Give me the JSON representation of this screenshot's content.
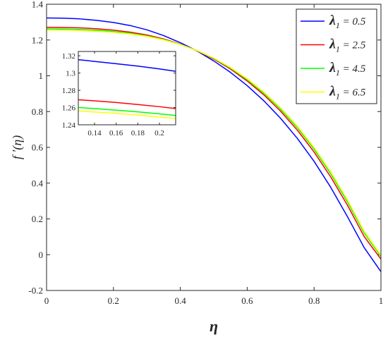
{
  "chart_data": {
    "type": "line",
    "xlabel": "η",
    "ylabel": "f ′(η)",
    "xlim": [
      0,
      1
    ],
    "ylim": [
      -0.2,
      1.4
    ],
    "x_ticks": [
      "0",
      "0.2",
      "0.4",
      "0.6",
      "0.8",
      "1"
    ],
    "y_ticks": [
      "-0.2",
      "0",
      "0.2",
      "0.4",
      "0.6",
      "0.8",
      "1",
      "1.2",
      "1.4"
    ],
    "grid": false,
    "legend_position": "top-right",
    "x": [
      0,
      0.05,
      0.1,
      0.15,
      0.2,
      0.25,
      0.3,
      0.35,
      0.4,
      0.45,
      0.5,
      0.55,
      0.6,
      0.65,
      0.7,
      0.75,
      0.8,
      0.85,
      0.9,
      0.95,
      1.0
    ],
    "series": [
      {
        "name": "λ1 = 0.5",
        "color": "#0000ff",
        "values": [
          1.323,
          1.322,
          1.318,
          1.31,
          1.298,
          1.281,
          1.257,
          1.225,
          1.185,
          1.139,
          1.083,
          1.019,
          0.945,
          0.86,
          0.762,
          0.65,
          0.522,
          0.376,
          0.212,
          0.039,
          -0.095
        ]
      },
      {
        "name": "λ1 = 2.5",
        "color": "#ff0000",
        "values": [
          1.271,
          1.27,
          1.268,
          1.263,
          1.255,
          1.244,
          1.228,
          1.206,
          1.177,
          1.14,
          1.094,
          1.038,
          0.971,
          0.893,
          0.802,
          0.696,
          0.574,
          0.434,
          0.276,
          0.101,
          -0.025
        ]
      },
      {
        "name": "λ1 = 4.5",
        "color": "#00ff00",
        "values": [
          1.262,
          1.261,
          1.259,
          1.255,
          1.248,
          1.238,
          1.223,
          1.203,
          1.176,
          1.141,
          1.097,
          1.043,
          0.978,
          0.902,
          0.813,
          0.71,
          0.59,
          0.452,
          0.295,
          0.121,
          -0.01
        ]
      },
      {
        "name": "λ1 = 6.5",
        "color": "#ffff00",
        "values": [
          1.256,
          1.255,
          1.253,
          1.249,
          1.243,
          1.234,
          1.22,
          1.201,
          1.175,
          1.141,
          1.099,
          1.046,
          0.983,
          0.908,
          0.82,
          0.718,
          0.599,
          0.462,
          0.305,
          0.13,
          -0.003
        ]
      }
    ],
    "legend": [
      {
        "symbol": "λ",
        "sub": "1",
        "rest": " = 0.5"
      },
      {
        "symbol": "λ",
        "sub": "1",
        "rest": " = 2.5"
      },
      {
        "symbol": "λ",
        "sub": "1",
        "rest": " = 4.5"
      },
      {
        "symbol": "λ",
        "sub": "1",
        "rest": " = 6.5"
      }
    ],
    "inset": {
      "type": "line",
      "xlim": [
        0.125,
        0.215
      ],
      "ylim": [
        1.24,
        1.325
      ],
      "x_ticks": [
        "0.14",
        "0.16",
        "0.18",
        "0.2"
      ],
      "y_ticks": [
        "1.24",
        "1.26",
        "1.28",
        "1.3",
        "1.32"
      ],
      "x": [
        0.125,
        0.14,
        0.16,
        0.18,
        0.2,
        0.215
      ],
      "series": [
        {
          "color": "#0000ff",
          "values": [
            1.3155,
            1.3135,
            1.3108,
            1.308,
            1.3048,
            1.302
          ]
        },
        {
          "color": "#ff0000",
          "values": [
            1.269,
            1.2678,
            1.2658,
            1.2635,
            1.261,
            1.2588
          ]
        },
        {
          "color": "#00ff00",
          "values": [
            1.26,
            1.2588,
            1.257,
            1.255,
            1.2527,
            1.2508
          ]
        },
        {
          "color": "#ffff00",
          "values": [
            1.256,
            1.2548,
            1.2532,
            1.2512,
            1.249,
            1.2472
          ]
        }
      ]
    }
  }
}
